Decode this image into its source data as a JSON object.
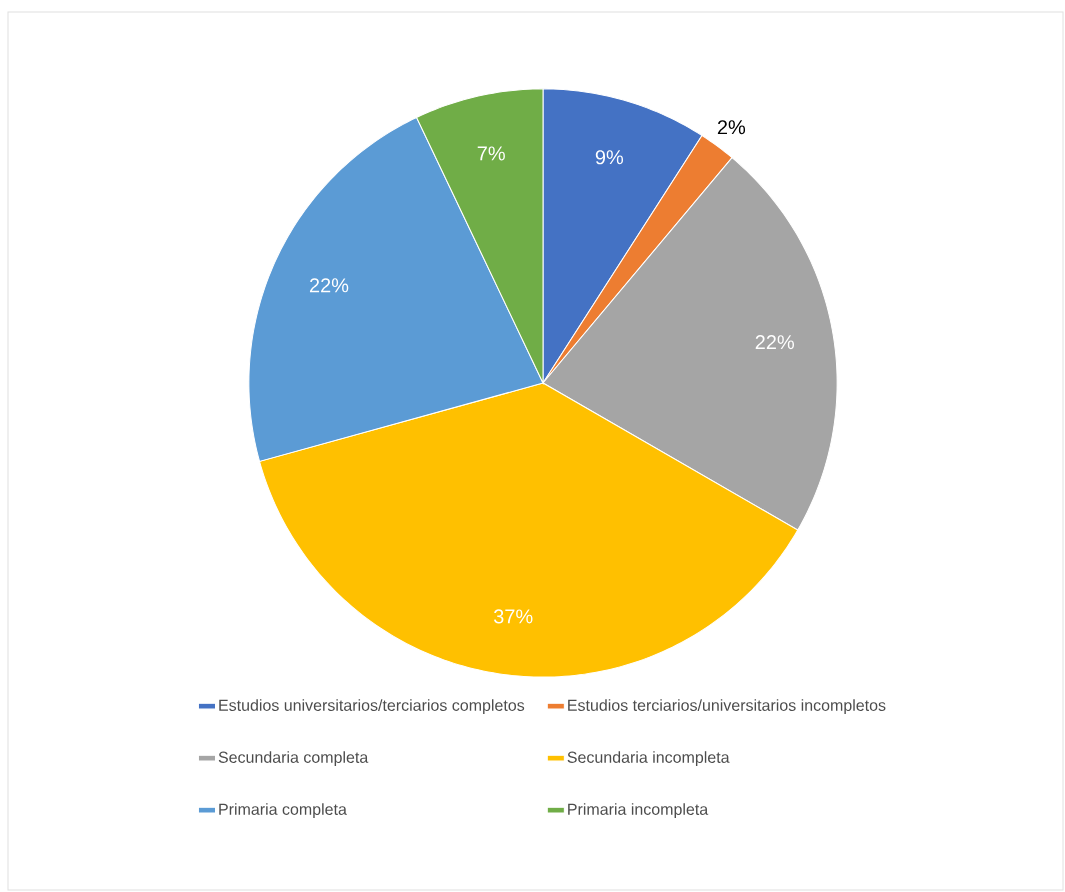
{
  "chart_data": {
    "type": "pie",
    "categories": [
      "Estudios universitarios/terciarios completos",
      "Estudios terciarios/universitarios incompletos",
      "Secundaria completa",
      "Secundaria incompleta",
      "Primaria completa",
      "Primaria incompleta"
    ],
    "values": [
      9,
      2,
      22,
      37,
      22,
      7
    ],
    "value_labels": [
      "9%",
      "2%",
      "22%",
      "37%",
      "22%",
      "7%"
    ],
    "colors": [
      "#4472c4",
      "#ed7d31",
      "#a5a5a5",
      "#ffc000",
      "#5b9bd5",
      "#70ad47"
    ],
    "legend": "bottom"
  }
}
